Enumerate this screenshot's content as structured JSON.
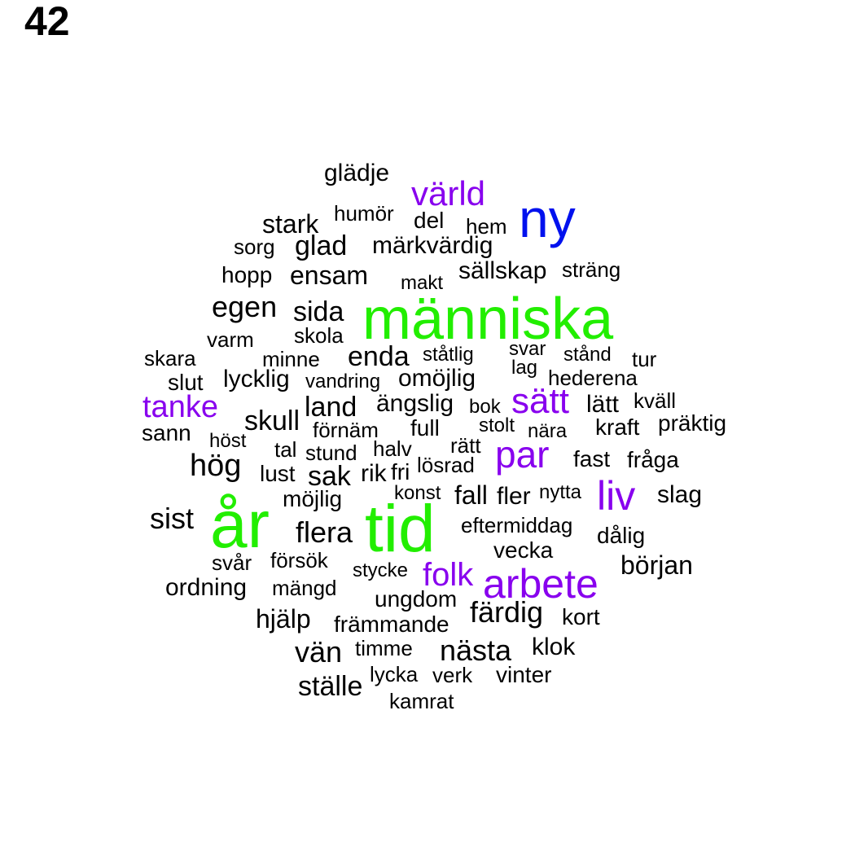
{
  "page_number": "42",
  "colors": {
    "black": "#000000",
    "purple": "#8800ee",
    "green": "#22ee00",
    "blue": "#0011ee"
  },
  "words": [
    {
      "text": "glädje",
      "color": "black"
    },
    {
      "text": "värld",
      "color": "purple"
    },
    {
      "text": "ny",
      "color": "blue"
    },
    {
      "text": "humör",
      "color": "black"
    },
    {
      "text": "stark",
      "color": "black"
    },
    {
      "text": "del",
      "color": "black"
    },
    {
      "text": "hem",
      "color": "black"
    },
    {
      "text": "sorg",
      "color": "black"
    },
    {
      "text": "glad",
      "color": "black"
    },
    {
      "text": "märkvärdig",
      "color": "black"
    },
    {
      "text": "hopp",
      "color": "black"
    },
    {
      "text": "ensam",
      "color": "black"
    },
    {
      "text": "sällskap",
      "color": "black"
    },
    {
      "text": "sträng",
      "color": "black"
    },
    {
      "text": "makt",
      "color": "black"
    },
    {
      "text": "egen",
      "color": "black"
    },
    {
      "text": "sida",
      "color": "black"
    },
    {
      "text": "människa",
      "color": "green"
    },
    {
      "text": "varm",
      "color": "black"
    },
    {
      "text": "skola",
      "color": "black"
    },
    {
      "text": "skara",
      "color": "black"
    },
    {
      "text": "minne",
      "color": "black"
    },
    {
      "text": "enda",
      "color": "black"
    },
    {
      "text": "ståtlig",
      "color": "black"
    },
    {
      "text": "svar",
      "color": "black"
    },
    {
      "text": "stånd",
      "color": "black"
    },
    {
      "text": "tur",
      "color": "black"
    },
    {
      "text": "lag",
      "color": "black"
    },
    {
      "text": "slut",
      "color": "black"
    },
    {
      "text": "lycklig",
      "color": "black"
    },
    {
      "text": "vandring",
      "color": "black"
    },
    {
      "text": "omöjlig",
      "color": "black"
    },
    {
      "text": "hederena",
      "color": "black"
    },
    {
      "text": "tanke",
      "color": "purple"
    },
    {
      "text": "land",
      "color": "black"
    },
    {
      "text": "ängslig",
      "color": "black"
    },
    {
      "text": "bok",
      "color": "black"
    },
    {
      "text": "sätt",
      "color": "purple"
    },
    {
      "text": "lätt",
      "color": "black"
    },
    {
      "text": "kväll",
      "color": "black"
    },
    {
      "text": "skull",
      "color": "black"
    },
    {
      "text": "sann",
      "color": "black"
    },
    {
      "text": "förnäm",
      "color": "black"
    },
    {
      "text": "full",
      "color": "black"
    },
    {
      "text": "stolt",
      "color": "black"
    },
    {
      "text": "nära",
      "color": "black"
    },
    {
      "text": "kraft",
      "color": "black"
    },
    {
      "text": "präktig",
      "color": "black"
    },
    {
      "text": "höst",
      "color": "black"
    },
    {
      "text": "tal",
      "color": "black"
    },
    {
      "text": "stund",
      "color": "black"
    },
    {
      "text": "halv",
      "color": "black"
    },
    {
      "text": "rätt",
      "color": "black"
    },
    {
      "text": "par",
      "color": "purple"
    },
    {
      "text": "hög",
      "color": "black"
    },
    {
      "text": "lust",
      "color": "black"
    },
    {
      "text": "sak",
      "color": "black"
    },
    {
      "text": "rik",
      "color": "black"
    },
    {
      "text": "fri",
      "color": "black"
    },
    {
      "text": "lösrad",
      "color": "black"
    },
    {
      "text": "fast",
      "color": "black"
    },
    {
      "text": "fråga",
      "color": "black"
    },
    {
      "text": "möjlig",
      "color": "black"
    },
    {
      "text": "konst",
      "color": "black"
    },
    {
      "text": "fall",
      "color": "black"
    },
    {
      "text": "fler",
      "color": "black"
    },
    {
      "text": "nytta",
      "color": "black"
    },
    {
      "text": "liv",
      "color": "purple"
    },
    {
      "text": "slag",
      "color": "black"
    },
    {
      "text": "sist",
      "color": "black"
    },
    {
      "text": "år",
      "color": "green"
    },
    {
      "text": "tid",
      "color": "green"
    },
    {
      "text": "flera",
      "color": "black"
    },
    {
      "text": "eftermiddag",
      "color": "black"
    },
    {
      "text": "dålig",
      "color": "black"
    },
    {
      "text": "vecka",
      "color": "black"
    },
    {
      "text": "svår",
      "color": "black"
    },
    {
      "text": "försök",
      "color": "black"
    },
    {
      "text": "stycke",
      "color": "black"
    },
    {
      "text": "folk",
      "color": "purple"
    },
    {
      "text": "arbete",
      "color": "purple"
    },
    {
      "text": "början",
      "color": "black"
    },
    {
      "text": "ordning",
      "color": "black"
    },
    {
      "text": "mängd",
      "color": "black"
    },
    {
      "text": "ungdom",
      "color": "black"
    },
    {
      "text": "hjälp",
      "color": "black"
    },
    {
      "text": "färdig",
      "color": "black"
    },
    {
      "text": "kort",
      "color": "black"
    },
    {
      "text": "främmande",
      "color": "black"
    },
    {
      "text": "vän",
      "color": "black"
    },
    {
      "text": "timme",
      "color": "black"
    },
    {
      "text": "nästa",
      "color": "black"
    },
    {
      "text": "klok",
      "color": "black"
    },
    {
      "text": "lycka",
      "color": "black"
    },
    {
      "text": "verk",
      "color": "black"
    },
    {
      "text": "vinter",
      "color": "black"
    },
    {
      "text": "ställe",
      "color": "black"
    },
    {
      "text": "kamrat",
      "color": "black"
    }
  ]
}
